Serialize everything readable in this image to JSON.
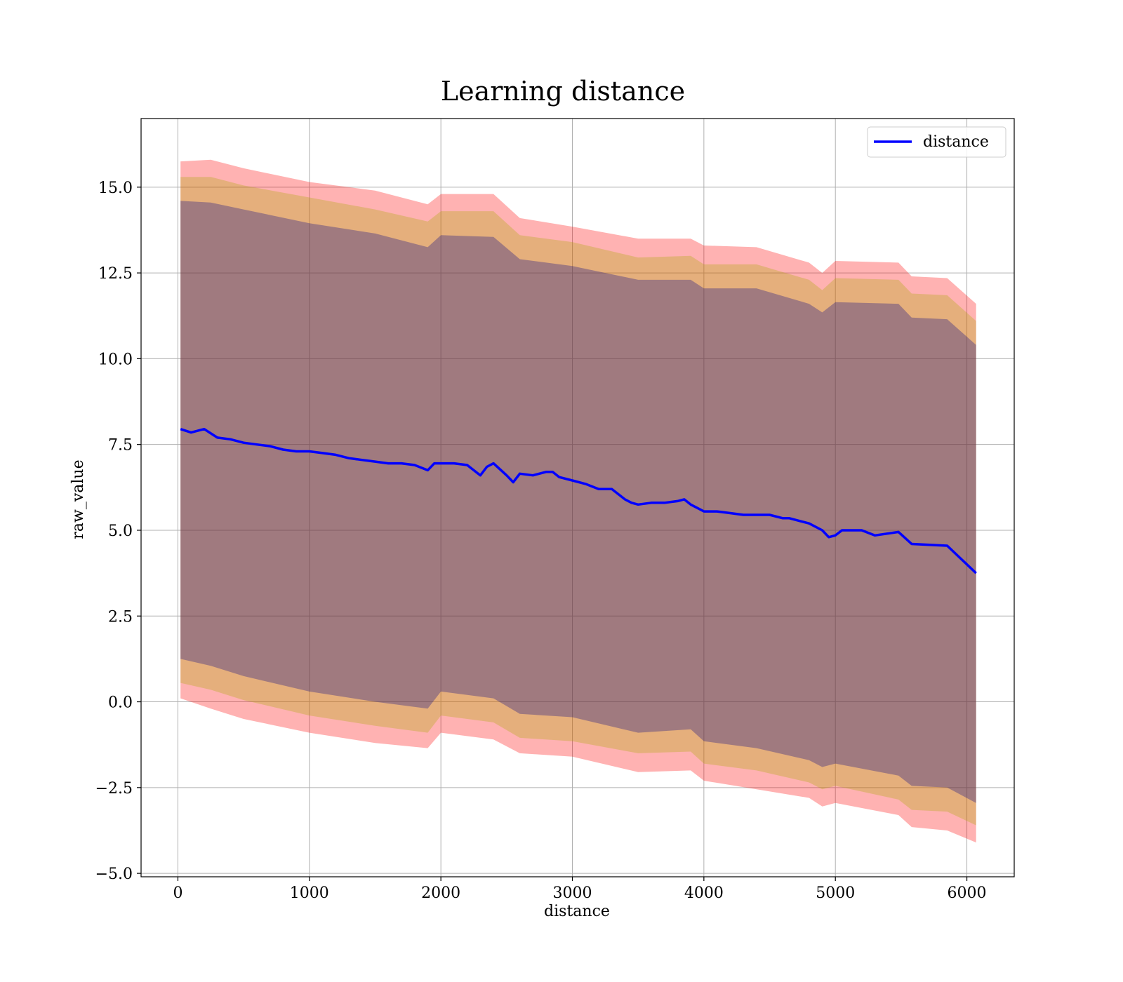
{
  "chart_data": {
    "type": "line",
    "title": "Learning distance",
    "xlabel": "distance",
    "ylabel": "raw_value",
    "xlim": [
      -280,
      6360
    ],
    "ylim": [
      -5.1,
      17.0
    ],
    "xticks": [
      0,
      1000,
      2000,
      3000,
      4000,
      5000,
      6000
    ],
    "yticks": [
      -5.0,
      -2.5,
      0.0,
      2.5,
      5.0,
      7.5,
      10.0,
      12.5,
      15.0
    ],
    "ytick_labels": [
      "−5.0",
      "−2.5",
      "0.0",
      "2.5",
      "5.0",
      "7.5",
      "10.0",
      "12.5",
      "15.0"
    ],
    "grid": true,
    "legend_position": "top-right",
    "series": [
      {
        "name": "distance",
        "color": "#0000ff",
        "x": [
          20,
          100,
          200,
          300,
          400,
          500,
          600,
          700,
          800,
          900,
          1000,
          1100,
          1200,
          1300,
          1400,
          1500,
          1600,
          1700,
          1800,
          1900,
          1950,
          2000,
          2100,
          2200,
          2300,
          2350,
          2400,
          2500,
          2550,
          2600,
          2700,
          2800,
          2850,
          2900,
          3000,
          3100,
          3200,
          3300,
          3400,
          3450,
          3500,
          3600,
          3700,
          3800,
          3850,
          3900,
          4000,
          4100,
          4200,
          4300,
          4400,
          4500,
          4600,
          4650,
          4700,
          4800,
          4900,
          4950,
          5000,
          5050,
          5200,
          5300,
          5480,
          5580,
          5850,
          6070
        ],
        "values": [
          7.95,
          7.85,
          7.95,
          7.7,
          7.65,
          7.55,
          7.5,
          7.45,
          7.35,
          7.3,
          7.3,
          7.25,
          7.2,
          7.1,
          7.05,
          7.0,
          6.95,
          6.95,
          6.9,
          6.75,
          6.95,
          6.95,
          6.95,
          6.9,
          6.6,
          6.85,
          6.95,
          6.6,
          6.4,
          6.65,
          6.6,
          6.7,
          6.7,
          6.55,
          6.45,
          6.35,
          6.2,
          6.2,
          5.9,
          5.8,
          5.75,
          5.8,
          5.8,
          5.85,
          5.9,
          5.75,
          5.55,
          5.55,
          5.5,
          5.45,
          5.45,
          5.45,
          5.35,
          5.35,
          5.3,
          5.2,
          5.0,
          4.8,
          4.85,
          5.0,
          5.0,
          4.85,
          4.95,
          4.6,
          4.55,
          3.75
        ]
      }
    ],
    "bands": [
      {
        "color": "#ff0000",
        "opacity": 0.3,
        "x": [
          20,
          250,
          500,
          1000,
          1500,
          1900,
          2000,
          2400,
          2600,
          3000,
          3500,
          3900,
          4000,
          4400,
          4800,
          4900,
          5000,
          5480,
          5580,
          5850,
          6070
        ],
        "lower": [
          0.1,
          -0.2,
          -0.5,
          -0.9,
          -1.2,
          -1.35,
          -0.9,
          -1.1,
          -1.5,
          -1.6,
          -2.05,
          -2.0,
          -2.3,
          -2.55,
          -2.8,
          -3.05,
          -2.95,
          -3.3,
          -3.65,
          -3.75,
          -4.1
        ],
        "upper": [
          15.75,
          15.8,
          15.55,
          15.15,
          14.9,
          14.5,
          14.8,
          14.8,
          14.1,
          13.85,
          13.5,
          13.5,
          13.3,
          13.25,
          12.8,
          12.5,
          12.85,
          12.8,
          12.4,
          12.35,
          11.6
        ]
      },
      {
        "color": "#aaaa00",
        "opacity": 0.3,
        "x": [
          20,
          250,
          500,
          1000,
          1500,
          1900,
          2000,
          2400,
          2600,
          3000,
          3500,
          3900,
          4000,
          4400,
          4800,
          4900,
          5000,
          5480,
          5580,
          5850,
          6070
        ],
        "lower": [
          0.55,
          0.35,
          0.05,
          -0.4,
          -0.7,
          -0.9,
          -0.4,
          -0.6,
          -1.05,
          -1.15,
          -1.5,
          -1.45,
          -1.8,
          -2.0,
          -2.35,
          -2.55,
          -2.45,
          -2.85,
          -3.15,
          -3.2,
          -3.6
        ],
        "upper": [
          15.3,
          15.3,
          15.05,
          14.7,
          14.35,
          14.0,
          14.3,
          14.3,
          13.6,
          13.4,
          12.95,
          13.0,
          12.75,
          12.75,
          12.3,
          12.0,
          12.35,
          12.3,
          11.9,
          11.85,
          11.1
        ]
      },
      {
        "color": "#000088",
        "opacity": 0.3,
        "x": [
          20,
          250,
          500,
          1000,
          1500,
          1900,
          2000,
          2400,
          2600,
          3000,
          3500,
          3900,
          4000,
          4400,
          4800,
          4900,
          5000,
          5480,
          5580,
          5850,
          6070
        ],
        "lower": [
          1.25,
          1.05,
          0.75,
          0.3,
          0.0,
          -0.2,
          0.3,
          0.1,
          -0.35,
          -0.45,
          -0.9,
          -0.8,
          -1.15,
          -1.35,
          -1.7,
          -1.9,
          -1.8,
          -2.15,
          -2.45,
          -2.5,
          -2.95
        ],
        "upper": [
          14.6,
          14.55,
          14.35,
          13.95,
          13.65,
          13.25,
          13.6,
          13.55,
          12.9,
          12.7,
          12.3,
          12.3,
          12.05,
          12.05,
          11.6,
          11.35,
          11.65,
          11.6,
          11.2,
          11.15,
          10.4
        ]
      }
    ]
  }
}
